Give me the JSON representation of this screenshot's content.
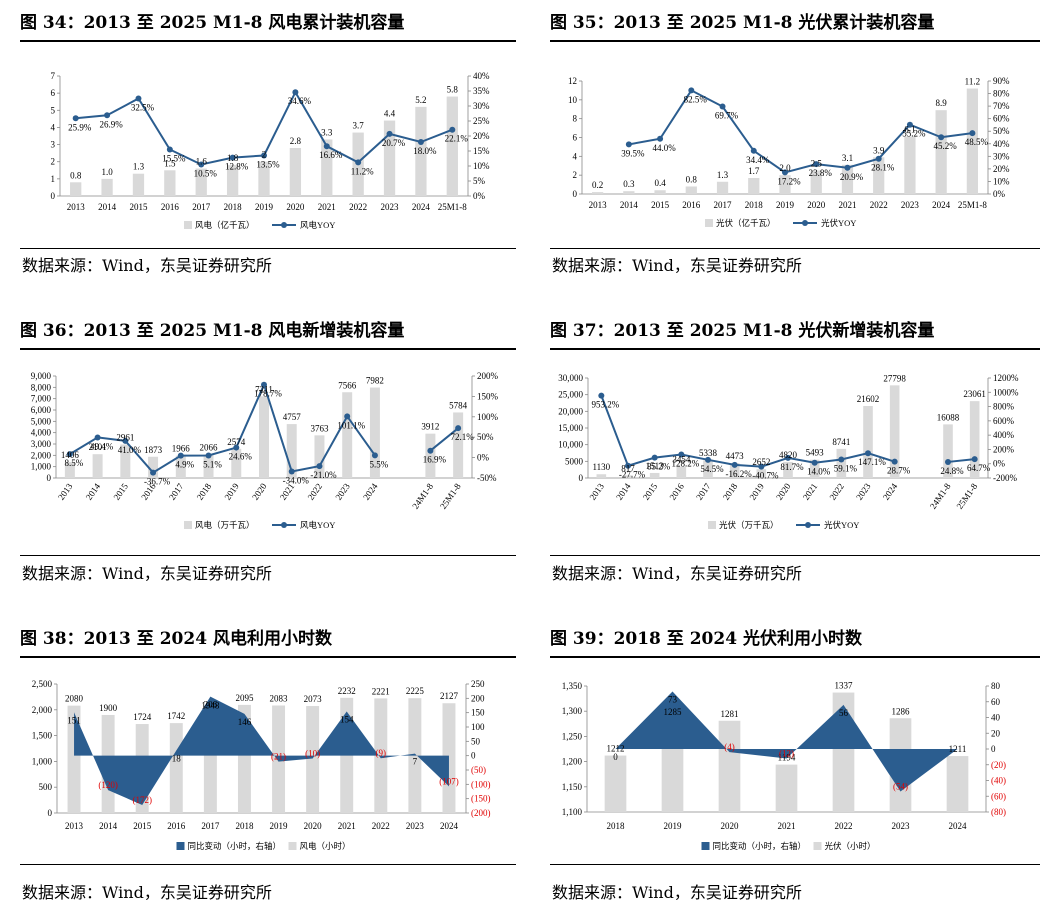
{
  "source_text": "数据来源：Wind，东吴证券研究所",
  "chart_data": [
    {
      "id": "c34",
      "type": "bar+line",
      "title": "图 34：2013 至 2025 M1-8 风电累计装机容量",
      "categories": [
        "2013",
        "2014",
        "2015",
        "2016",
        "2017",
        "2018",
        "2019",
        "2020",
        "2021",
        "2022",
        "2023",
        "2024",
        "25M1-8"
      ],
      "bar_series": {
        "name": "风电（亿千瓦）",
        "values": [
          0.8,
          1.0,
          1.3,
          1.5,
          1.6,
          1.8,
          2.0,
          2.8,
          3.3,
          3.7,
          4.4,
          5.2,
          5.8
        ],
        "labels": [
          "0.8",
          "1.0",
          "1.3",
          "1.5",
          "1.6",
          "1.8",
          "2",
          "2.8",
          "3.3",
          "3.7",
          "4.4",
          "5.2",
          "5.8"
        ]
      },
      "line_series": {
        "name": "风电YOY",
        "values": [
          25.9,
          26.9,
          32.5,
          15.5,
          10.5,
          12.8,
          13.5,
          34.6,
          16.6,
          11.2,
          20.7,
          18.0,
          22.1
        ],
        "labels": [
          "25.9%",
          "26.9%",
          "32.5%",
          "15.5%",
          "10.5%",
          "12.8%",
          "13.5%",
          "34.6%",
          "16.6%",
          "11.2%",
          "20.7%",
          "18.0%",
          "22.1%"
        ]
      },
      "left_axis": {
        "min": 0,
        "max": 7,
        "ticks": [
          "0",
          "1",
          "2",
          "3",
          "4",
          "5",
          "6",
          "7"
        ]
      },
      "right_axis": {
        "min": 0,
        "max": 40,
        "ticks": [
          "0%",
          "5%",
          "10%",
          "15%",
          "20%",
          "25%",
          "30%",
          "35%",
          "40%"
        ]
      },
      "legend": "bottom-center"
    },
    {
      "id": "c35",
      "type": "bar+line",
      "title": "图 35：2013 至 2025 M1-8 光伏累计装机容量",
      "categories": [
        "2013",
        "2014",
        "2015",
        "2016",
        "2017",
        "2018",
        "2019",
        "2020",
        "2021",
        "2022",
        "2023",
        "2024",
        "25M1-8"
      ],
      "bar_series": {
        "name": "光伏（亿千瓦）",
        "values": [
          0.2,
          0.3,
          0.4,
          0.8,
          1.3,
          1.7,
          2.0,
          2.5,
          3.1,
          3.9,
          6.1,
          8.9,
          11.2
        ],
        "labels": [
          "0.2",
          "0.3",
          "0.4",
          "0.8",
          "1.3",
          "1.7",
          "2.0",
          "2.5",
          "3.1",
          "3.9",
          "6.1",
          "8.9",
          "11.2"
        ]
      },
      "line_series": {
        "name": "光伏YOY",
        "values": [
          null,
          39.5,
          44.0,
          82.5,
          69.7,
          34.4,
          17.2,
          23.8,
          20.9,
          28.1,
          55.2,
          45.2,
          48.5
        ],
        "labels": [
          "",
          "39.5%",
          "44.0%",
          "82.5%",
          "69.7%",
          "34.4%",
          "17.2%",
          "23.8%",
          "20.9%",
          "28.1%",
          "55.2%",
          "45.2%",
          "48.5%"
        ]
      },
      "left_axis": {
        "min": 0,
        "max": 12,
        "ticks": [
          "0",
          "2",
          "4",
          "6",
          "8",
          "10",
          "12"
        ]
      },
      "right_axis": {
        "min": 0,
        "max": 90,
        "ticks": [
          "0%",
          "10%",
          "20%",
          "30%",
          "40%",
          "50%",
          "60%",
          "70%",
          "80%",
          "90%"
        ]
      },
      "legend": "bottom-center"
    },
    {
      "id": "c36",
      "type": "bar+line",
      "title": "图 36：2013 至 2025 M1-8 风电新增装机容量",
      "categories": [
        "2013",
        "2014",
        "2015",
        "2016",
        "2017",
        "2018",
        "2019",
        "2020",
        "2021",
        "2022",
        "2023",
        "2024",
        "",
        "24M1-8",
        "25M1-8"
      ],
      "bar_series": {
        "name": "风电（万千瓦）",
        "values": [
          1406,
          2101,
          2961,
          1873,
          1966,
          2066,
          2574,
          7211,
          4757,
          3763,
          7566,
          7982,
          null,
          3912,
          5784
        ],
        "labels": [
          "1406",
          "2101",
          "2961",
          "1873",
          "1966",
          "2066",
          "2574",
          "7211",
          "4757",
          "3763",
          "7566",
          "7982",
          "",
          "3912",
          "5784"
        ]
      },
      "line_series": {
        "name": "风电YOY",
        "values": [
          8.5,
          49.4,
          41.0,
          -36.7,
          4.9,
          5.1,
          24.6,
          178.7,
          -34.0,
          -21.0,
          101.1,
          5.5,
          null,
          16.9,
          72.1
        ],
        "labels": [
          "8.5%",
          "49.4%",
          "41.0%",
          "-36.7%",
          "4.9%",
          "5.1%",
          "24.6%",
          "178.7%",
          "-34.0%",
          "-21.0%",
          "101.1%",
          "5.5%",
          "",
          "16.9%",
          "72.1%"
        ]
      },
      "left_axis": {
        "min": 0,
        "max": 9000,
        "ticks": [
          "0",
          "1,000",
          "2,000",
          "3,000",
          "4,000",
          "5,000",
          "6,000",
          "7,000",
          "8,000",
          "9,000"
        ]
      },
      "right_axis": {
        "min": -50,
        "max": 200,
        "ticks": [
          "-50%",
          "0%",
          "50%",
          "100%",
          "150%",
          "200%"
        ]
      },
      "legend": "bottom-center"
    },
    {
      "id": "c37",
      "type": "bar+line",
      "title": "图 37：2013 至 2025 M1-8 光伏新增装机容量",
      "categories": [
        "2013",
        "2014",
        "2015",
        "2016",
        "2017",
        "2018",
        "2019",
        "2020",
        "2021",
        "2022",
        "2023",
        "2024",
        "",
        "24M1-8",
        "25M1-8"
      ],
      "bar_series": {
        "name": "光伏（万千瓦）",
        "values": [
          1130,
          817,
          1513,
          3454,
          5338,
          4473,
          2652,
          4820,
          5493,
          8741,
          21602,
          27798,
          null,
          16088,
          23061
        ],
        "labels": [
          "1130",
          "817",
          "1513",
          "3454",
          "5338",
          "4473",
          "2652",
          "4820",
          "5493",
          "8741",
          "21602",
          "27798",
          "",
          "16088",
          "23061"
        ]
      },
      "line_series": {
        "name": "光伏YOY",
        "values": [
          953.2,
          -27.7,
          85.2,
          128.2,
          54.5,
          -16.2,
          -40.7,
          81.7,
          14.0,
          59.1,
          147.1,
          28.7,
          null,
          24.8,
          64.7
        ],
        "labels": [
          "953.2%",
          "-27.7%",
          "85.2%",
          "128.2%",
          "54.5%",
          "-16.2%",
          "-40.7%",
          "81.7%",
          "14.0%",
          "59.1%",
          "147.1%",
          "28.7%",
          "",
          "24.8%",
          "64.7%"
        ]
      },
      "left_axis": {
        "min": 0,
        "max": 30000,
        "ticks": [
          "0",
          "5000",
          "10,000",
          "15,000",
          "20,000",
          "25,000",
          "30,000"
        ]
      },
      "right_axis": {
        "min": -200,
        "max": 1200,
        "ticks": [
          "-200%",
          "0%",
          "200%",
          "400%",
          "600%",
          "800%",
          "1000%",
          "1200%"
        ]
      },
      "legend": "bottom-center"
    },
    {
      "id": "c38",
      "type": "bar+area",
      "title": "图 38：2013 至 2024 风电利用小时数",
      "categories": [
        "2013",
        "2014",
        "2015",
        "2016",
        "2017",
        "2018",
        "2019",
        "2020",
        "2021",
        "2022",
        "2023",
        "2024"
      ],
      "bar_series": {
        "name": "风电（小时）",
        "values": [
          2080,
          1900,
          1724,
          1742,
          1948,
          2095,
          2083,
          2073,
          2232,
          2221,
          2225,
          2127
        ],
        "labels": [
          "2080",
          "1900",
          "1724",
          "1742",
          "1948",
          "2095",
          "2083",
          "2073",
          "2232",
          "2221",
          "2225",
          "2127"
        ]
      },
      "area_series": {
        "name": "同比变动（小时，右轴）",
        "values": [
          151,
          -120,
          -172,
          18,
          206,
          146,
          -21,
          -10,
          154,
          -9,
          7,
          -107
        ],
        "labels": [
          "151",
          "(120)",
          "(172)",
          "18",
          "206",
          "146",
          "(21)",
          "(10)",
          "154",
          "(9)",
          "7",
          "(107)"
        ]
      },
      "left_axis": {
        "min": 0,
        "max": 2500,
        "ticks": [
          "0",
          "500",
          "1,000",
          "1,500",
          "2,000",
          "2,500"
        ]
      },
      "right_axis": {
        "min": -200,
        "max": 250,
        "ticks": [
          "(200)",
          "(150)",
          "(100)",
          "(50)",
          "0",
          "50",
          "100",
          "150",
          "200",
          "250"
        ]
      },
      "legend": "bottom-center"
    },
    {
      "id": "c39",
      "type": "bar+area",
      "title": "图 39：2018 至 2024 光伏利用小时数",
      "categories": [
        "2018",
        "2019",
        "2020",
        "2021",
        "2022",
        "2023",
        "2024"
      ],
      "bar_series": {
        "name": "光伏（小时）",
        "values": [
          1212,
          1285,
          1281,
          1194,
          1337,
          1286,
          1211
        ],
        "labels": [
          "1212",
          "1285",
          "1281",
          "1194",
          "1337",
          "1286",
          "1211"
        ]
      },
      "area_series": {
        "name": "同比变动（小时，右轴）",
        "values": [
          0,
          73,
          -4,
          -12,
          56,
          -54,
          0
        ],
        "labels": [
          "0",
          "73",
          "(4)",
          "(12)",
          "56",
          "(54)",
          ""
        ]
      },
      "left_axis": {
        "min": 1100,
        "max": 1350,
        "ticks": [
          "1,100",
          "1,150",
          "1,200",
          "1,250",
          "1,300",
          "1,350"
        ]
      },
      "right_axis": {
        "min": -80,
        "max": 80,
        "ticks": [
          "(80)",
          "(60)",
          "(40)",
          "(20)",
          "0",
          "20",
          "40",
          "60",
          "80"
        ]
      },
      "legend": "bottom-center"
    }
  ]
}
